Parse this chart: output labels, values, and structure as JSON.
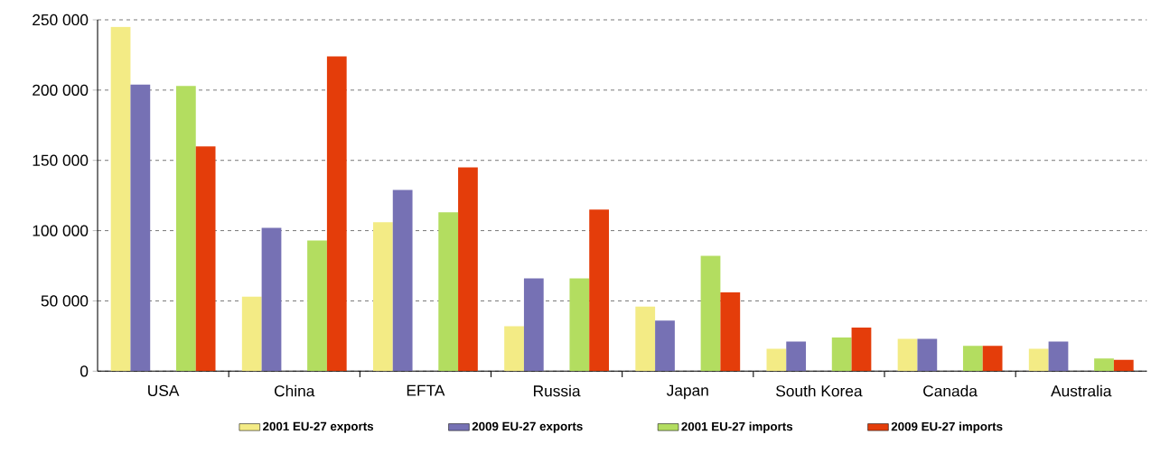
{
  "chart_data": {
    "type": "bar",
    "categories": [
      "USA",
      "China",
      "EFTA",
      "Russia",
      "Japan",
      "South Korea",
      "Canada",
      "Australia"
    ],
    "series": [
      {
        "name": "2001 EU-27 exports",
        "color": "#f3eb85",
        "values": [
          245000,
          53000,
          106000,
          32000,
          46000,
          16000,
          23000,
          16000
        ]
      },
      {
        "name": "2009 EU-27 exports",
        "color": "#7671b4",
        "values": [
          204000,
          102000,
          129000,
          66000,
          36000,
          21000,
          23000,
          21000
        ]
      },
      {
        "name": "2001 EU-27 imports",
        "color": "#b3dd60",
        "values": [
          203000,
          93000,
          113000,
          66000,
          82000,
          24000,
          18000,
          9000
        ]
      },
      {
        "name": "2009 EU-27 imports",
        "color": "#e43d0a",
        "values": [
          160000,
          224000,
          145000,
          115000,
          56000,
          31000,
          18000,
          8000
        ]
      }
    ],
    "ylim": [
      0,
      250000
    ],
    "yticks": [
      0,
      {
        "value": 50000,
        "label": "50 000"
      },
      {
        "value": 100000,
        "label": "100 000"
      },
      {
        "value": 150000,
        "label": "150 000"
      },
      {
        "value": 200000,
        "label": "200 000"
      },
      {
        "value": 250000,
        "label": "250 000"
      }
    ],
    "grid": "y",
    "legend": "bottom"
  }
}
